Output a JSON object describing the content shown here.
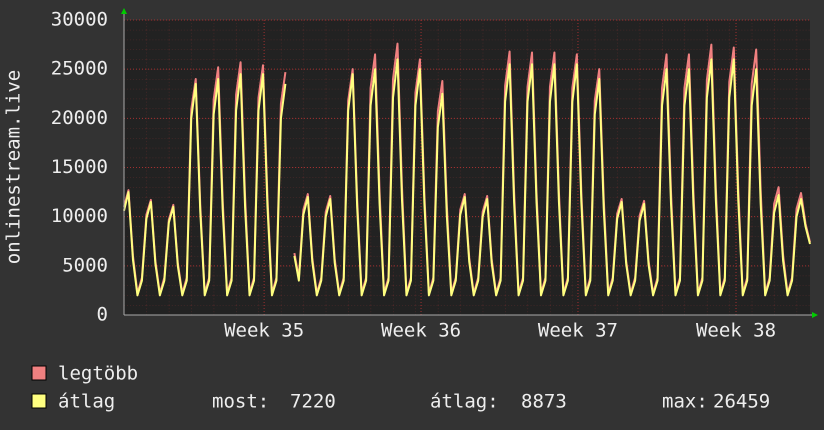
{
  "chart_data": {
    "type": "line",
    "ylabel": "onlinestream.live",
    "xlim": [
      0,
      30.6
    ],
    "ylim": [
      0,
      30000
    ],
    "yticks": [
      0,
      5000,
      10000,
      15000,
      20000,
      25000,
      30000
    ],
    "xticks": [
      {
        "value": 6.25,
        "label": "Week 35"
      },
      {
        "value": 13.25,
        "label": "Week 36"
      },
      {
        "value": 20.25,
        "label": "Week 37"
      },
      {
        "value": 27.3,
        "label": "Week 38"
      }
    ],
    "grid": true,
    "x": [
      0,
      0.2,
      0.4,
      0.6,
      0.8,
      1,
      1.2,
      1.4,
      1.6,
      1.8,
      2,
      2.2,
      2.4,
      2.6,
      2.8,
      3,
      3.2,
      3.4,
      3.6,
      3.8,
      4,
      4.2,
      4.4,
      4.6,
      4.8,
      5,
      5.2,
      5.4,
      5.6,
      5.8,
      6,
      6.2,
      6.4,
      6.6,
      6.8,
      7,
      7.2,
      7.4,
      7.6,
      7.8,
      8,
      8.2,
      8.4,
      8.6,
      8.8,
      9,
      9.2,
      9.4,
      9.6,
      9.8,
      10,
      10.2,
      10.4,
      10.6,
      10.8,
      11,
      11.2,
      11.4,
      11.6,
      11.8,
      12,
      12.2,
      12.4,
      12.6,
      12.8,
      13,
      13.2,
      13.4,
      13.6,
      13.8,
      14,
      14.2,
      14.4,
      14.6,
      14.8,
      15,
      15.2,
      15.4,
      15.6,
      15.8,
      16,
      16.2,
      16.4,
      16.6,
      16.8,
      17,
      17.2,
      17.4,
      17.6,
      17.8,
      18,
      18.2,
      18.4,
      18.6,
      18.8,
      19,
      19.2,
      19.4,
      19.6,
      19.8,
      20,
      20.2,
      20.4,
      20.6,
      20.8,
      21,
      21.2,
      21.4,
      21.6,
      21.8,
      22,
      22.2,
      22.4,
      22.6,
      22.8,
      23,
      23.2,
      23.4,
      23.6,
      23.8,
      24,
      24.2,
      24.4,
      24.6,
      24.8,
      25,
      25.2,
      25.4,
      25.6,
      25.8,
      26,
      26.2,
      26.4,
      26.6,
      26.8,
      27,
      27.2,
      27.4,
      27.6,
      27.8,
      28,
      28.2,
      28.4,
      28.6,
      28.8,
      29,
      29.2,
      29.4,
      29.6,
      29.8,
      30,
      30.2,
      30.4,
      30.6
    ],
    "series": [
      {
        "name": "legtöbb",
        "color": "#f08080",
        "values": [
          11000,
          12700,
          6000,
          2200,
          3800,
          10200,
          11700,
          5500,
          2200,
          3800,
          9700,
          11200,
          5300,
          2200,
          3800,
          20900,
          24000,
          11300,
          2200,
          3800,
          21900,
          25200,
          11800,
          2200,
          3800,
          22400,
          25700,
          12100,
          2200,
          3800,
          22100,
          25400,
          11900,
          2200,
          3800,
          21500,
          24700,
          null,
          6300,
          3800,
          10700,
          12300,
          5800,
          2200,
          3800,
          10500,
          12100,
          5700,
          2200,
          3800,
          21800,
          25000,
          11800,
          2200,
          3800,
          23100,
          26500,
          12500,
          2200,
          3800,
          24000,
          27600,
          13000,
          2200,
          3800,
          22600,
          26000,
          12200,
          2200,
          3800,
          20700,
          23800,
          11200,
          2200,
          3800,
          10700,
          12300,
          5800,
          2200,
          3800,
          10500,
          12100,
          5700,
          2200,
          3800,
          23300,
          26800,
          12600,
          2200,
          3800,
          23200,
          26700,
          12500,
          2200,
          3800,
          23200,
          26700,
          12500,
          2200,
          3800,
          23100,
          26500,
          12500,
          2200,
          3800,
          21800,
          25000,
          11800,
          2200,
          3800,
          10300,
          11800,
          5500,
          2200,
          3800,
          10100,
          11600,
          5500,
          2200,
          3800,
          23100,
          26500,
          12500,
          2200,
          3800,
          23100,
          26500,
          12500,
          2200,
          3800,
          23900,
          27500,
          12900,
          2200,
          3800,
          23700,
          27200,
          12800,
          2200,
          3800,
          23500,
          27000,
          12700,
          2200,
          3800,
          11300,
          13000,
          6100,
          2200,
          3800,
          10800,
          12400,
          9300,
          7400
        ]
      },
      {
        "name": "átlag",
        "color": "#ffff80",
        "values": [
          10600,
          12500,
          5600,
          2000,
          3500,
          9800,
          11500,
          5200,
          2000,
          3500,
          9400,
          11000,
          5000,
          2000,
          3500,
          20000,
          23500,
          10600,
          2000,
          3500,
          20400,
          24000,
          10800,
          2000,
          3500,
          20800,
          24500,
          11000,
          2000,
          3500,
          20800,
          24500,
          11000,
          2000,
          3500,
          20000,
          23500,
          null,
          6000,
          3500,
          10200,
          12000,
          5400,
          2000,
          3500,
          10000,
          11800,
          5300,
          2000,
          3500,
          20800,
          24500,
          11000,
          2000,
          3500,
          21300,
          25000,
          11300,
          2000,
          3500,
          22100,
          26000,
          11700,
          2000,
          3500,
          21300,
          25000,
          11300,
          2000,
          3500,
          19100,
          22500,
          10100,
          2000,
          3500,
          10200,
          12000,
          5400,
          2000,
          3500,
          10000,
          11800,
          5300,
          2000,
          3500,
          21700,
          25500,
          11500,
          2000,
          3500,
          21700,
          25500,
          11500,
          2000,
          3500,
          21700,
          25500,
          11500,
          2000,
          3500,
          21700,
          25500,
          11500,
          2000,
          3500,
          20400,
          24000,
          10800,
          2000,
          3500,
          9800,
          11500,
          5200,
          2000,
          3500,
          9600,
          11300,
          5100,
          2000,
          3500,
          21300,
          25000,
          11300,
          2000,
          3500,
          21300,
          25000,
          11300,
          2000,
          3500,
          22100,
          26000,
          11700,
          2000,
          3500,
          22100,
          26000,
          11700,
          2000,
          3500,
          21300,
          25000,
          11300,
          2000,
          3500,
          10400,
          12200,
          5500,
          2000,
          3500,
          10000,
          11800,
          9000,
          7220
        ]
      }
    ],
    "stats": [
      {
        "label": "most:",
        "value": 7220
      },
      {
        "label": "átlag:",
        "value": 8873
      },
      {
        "label": "max:",
        "value": 26459
      }
    ]
  }
}
